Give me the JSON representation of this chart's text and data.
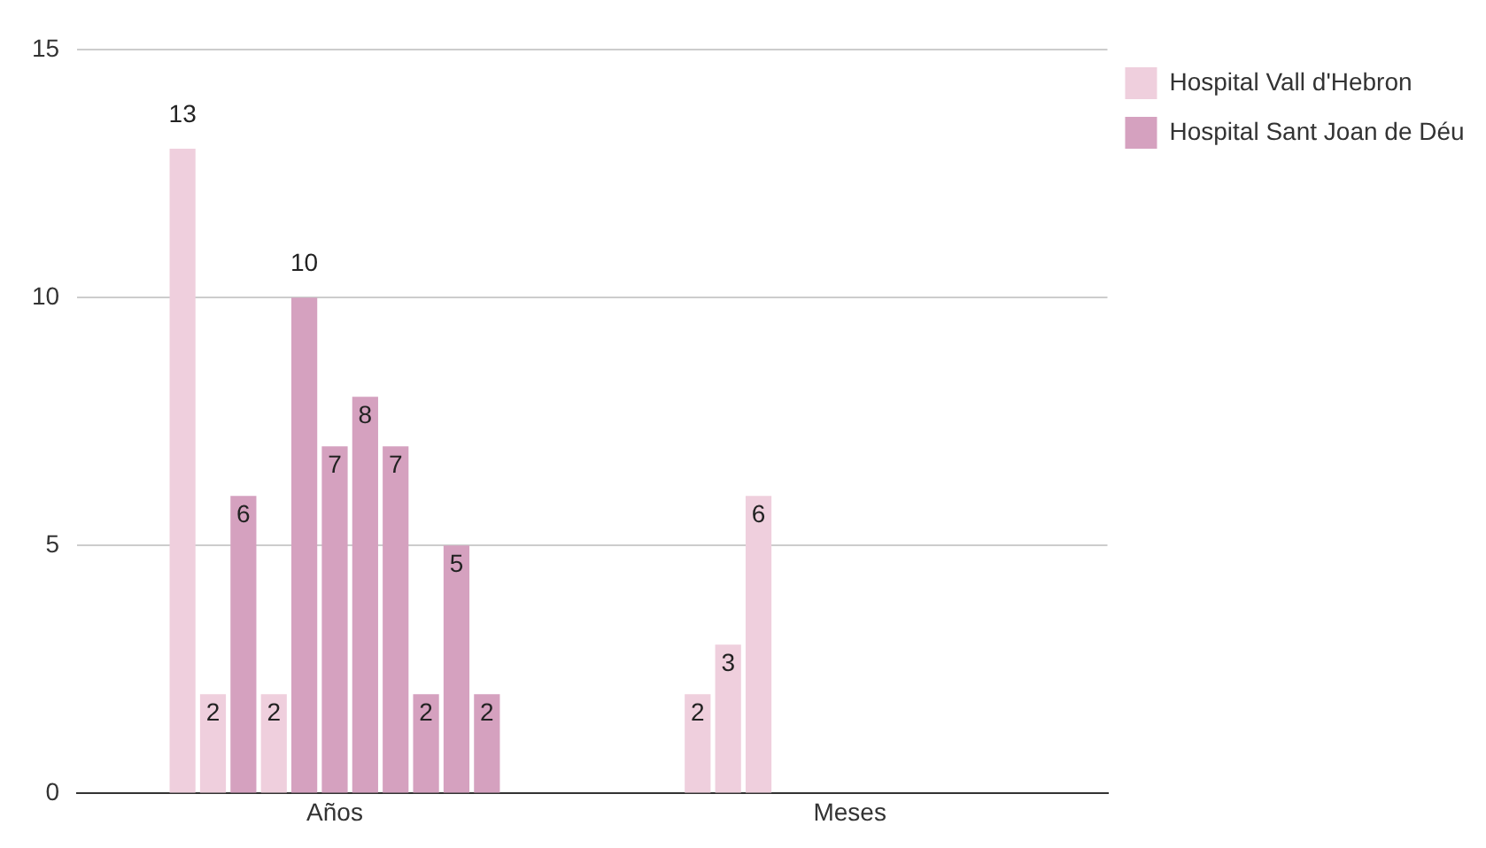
{
  "chart_data": {
    "type": "bar",
    "categories": [
      "Años",
      "Meses"
    ],
    "series": [
      {
        "name": "Hospital Vall d'Hebron",
        "color": "#efcfdd",
        "values": [
          13,
          2
        ]
      },
      {
        "color": "#efcfdd",
        "values": [
          2,
          3
        ]
      },
      {
        "colors": [
          "#d5a1bf",
          "#efcfdd"
        ],
        "values": [
          6,
          6
        ]
      },
      {
        "color": "#efcfdd",
        "values": [
          2,
          null
        ]
      },
      {
        "name": "Hospital Sant Joan de Déu",
        "color": "#d5a1bf",
        "values": [
          10,
          null
        ]
      },
      {
        "color": "#d5a1bf",
        "values": [
          7,
          null
        ]
      },
      {
        "color": "#d5a1bf",
        "values": [
          8,
          null
        ]
      },
      {
        "color": "#d5a1bf",
        "values": [
          7,
          null
        ]
      },
      {
        "color": "#d5a1bf",
        "values": [
          2,
          null
        ]
      },
      {
        "color": "#d5a1bf",
        "values": [
          5,
          null
        ]
      },
      {
        "color": "#d5a1bf",
        "values": [
          2,
          null
        ]
      }
    ],
    "ylim": [
      0,
      15
    ],
    "yticks": [
      0,
      5,
      10,
      15
    ],
    "grid": "y",
    "legend": "top right",
    "data_labels": true
  }
}
